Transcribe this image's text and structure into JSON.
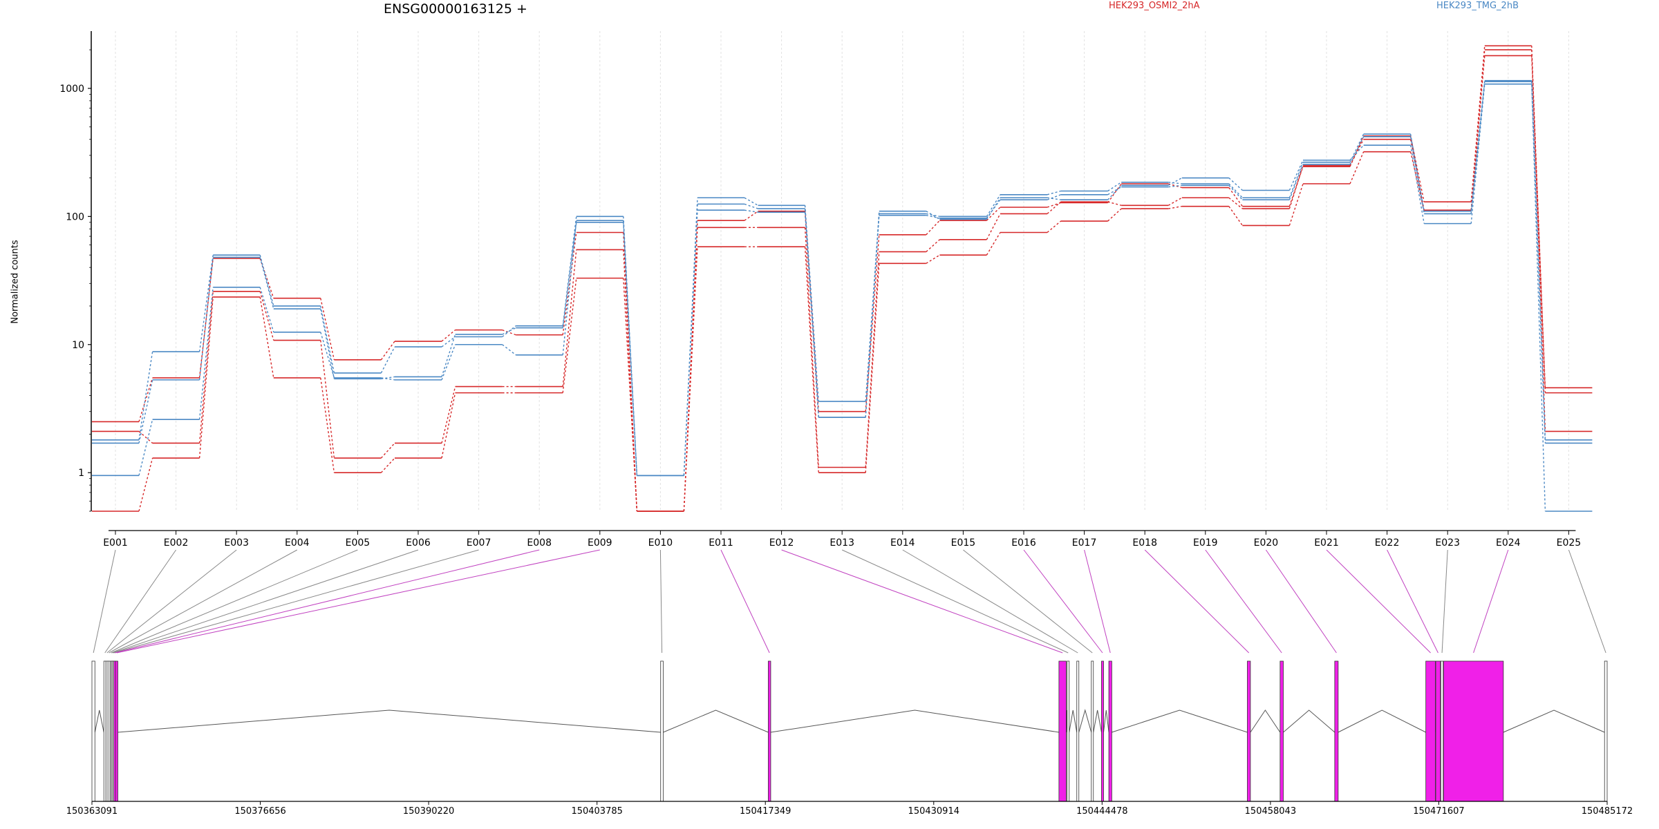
{
  "chart_data": [
    {
      "type": "line",
      "title": "ENSG00000163125 +",
      "ylabel": "Normalized counts",
      "yscale": "log",
      "ylim": [
        0.5,
        2800
      ],
      "yticks": [
        1,
        10,
        100,
        1000
      ],
      "ytick_labels": [
        "1",
        "10",
        "100",
        "1000"
      ],
      "grid": "vertical dashed",
      "legend_placement": "top",
      "categories": [
        "E001",
        "E002",
        "E003",
        "E004",
        "E005",
        "E006",
        "E007",
        "E008",
        "E009",
        "E010",
        "E011",
        "E012",
        "E013",
        "E014",
        "E015",
        "E016",
        "E017",
        "E018",
        "E019",
        "E020",
        "E021",
        "E022",
        "E023",
        "E024",
        "E025"
      ],
      "series": [
        {
          "group": "HEK293_OSMI2_2hA",
          "color": "#d62728",
          "values": [
            0.5,
            1.3,
            23.5,
            5.5,
            1.0,
            1.3,
            4.2,
            4.2,
            33,
            0.5,
            58,
            58,
            1.0,
            43,
            50,
            75,
            92,
            115,
            120,
            85,
            180,
            320,
            110,
            1800,
            4.2
          ]
        },
        {
          "group": "HEK293_OSMI2_2hA",
          "color": "#d62728",
          "values": [
            2.1,
            1.7,
            26,
            10.8,
            1.3,
            1.7,
            4.7,
            4.7,
            55,
            0.5,
            82,
            82,
            1.1,
            53,
            66,
            105,
            130,
            122,
            140,
            115,
            250,
            400,
            112,
            2000,
            4.6
          ]
        },
        {
          "group": "HEK293_OSMI2_2hA",
          "color": "#d62728",
          "values": [
            2.5,
            5.5,
            47,
            23,
            7.6,
            10.6,
            13,
            11.9,
            75,
            0.5,
            93,
            110,
            3.0,
            72,
            93,
            118,
            128,
            180,
            168,
            120,
            245,
            425,
            130,
            2150,
            2.1
          ]
        },
        {
          "group": "HEK293_TMG_2hB",
          "color": "#4a88c4",
          "values": [
            0.95,
            2.6,
            28,
            12.5,
            5.5,
            5.3,
            10,
            8.3,
            93,
            0.95,
            112,
            108,
            2.7,
            110,
            95,
            140,
            135,
            175,
            200,
            160,
            275,
            360,
            88,
            1080,
            0.5
          ]
        },
        {
          "group": "HEK293_TMG_2hB",
          "color": "#4a88c4",
          "values": [
            1.8,
            8.8,
            50,
            20,
            6.0,
            9.6,
            11.5,
            14,
            100,
            0.95,
            140,
            122,
            3.6,
            105,
            100,
            148,
            158,
            185,
            180,
            140,
            265,
            440,
            110,
            1150,
            1.8
          ]
        },
        {
          "group": "HEK293_TMG_2hB",
          "color": "#4a88c4",
          "values": [
            1.7,
            5.3,
            48,
            19,
            5.4,
            5.6,
            12,
            13.5,
            90,
            0.95,
            125,
            115,
            2.7,
            102,
            97,
            135,
            148,
            170,
            175,
            135,
            255,
            420,
            105,
            1130,
            1.7
          ]
        }
      ]
    },
    {
      "type": "gene-model",
      "xlim": [
        150363091,
        150485172
      ],
      "xticks": [
        150363091,
        150376656,
        150390220,
        150403785,
        150417349,
        150430914,
        150444478,
        150458043,
        150471607,
        150485172
      ],
      "xtick_labels": [
        "150363091",
        "150376656",
        "150390220",
        "150403785",
        "150417349",
        "150430914",
        "150444478",
        "150458043",
        "150471607",
        "150485172"
      ],
      "exons": [
        {
          "id": "E001",
          "start": 150363091,
          "end": 150363330,
          "highlight": false
        },
        {
          "id": "E002",
          "start": 150364051,
          "end": 150364160,
          "highlight": false
        },
        {
          "id": "E003",
          "start": 150364221,
          "end": 150364330,
          "highlight": false
        },
        {
          "id": "E004",
          "start": 150364381,
          "end": 150364470,
          "highlight": false
        },
        {
          "id": "E005",
          "start": 150364561,
          "end": 150364630,
          "highlight": false
        },
        {
          "id": "E006",
          "start": 150364661,
          "end": 150364720,
          "highlight": false
        },
        {
          "id": "E007",
          "start": 150364751,
          "end": 150364800,
          "highlight": false
        },
        {
          "id": "E008",
          "start": 150364851,
          "end": 150364950,
          "highlight": true
        },
        {
          "id": "E009",
          "start": 150364991,
          "end": 150365180,
          "highlight": true
        },
        {
          "id": "E010",
          "start": 150408911,
          "end": 150409120,
          "highlight": false
        },
        {
          "id": "E011",
          "start": 150417581,
          "end": 150417780,
          "highlight": true
        },
        {
          "id": "E012",
          "start": 150441001,
          "end": 150441590,
          "highlight": true
        },
        {
          "id": "E013",
          "start": 150441661,
          "end": 150441760,
          "highlight": false
        },
        {
          "id": "E014",
          "start": 150442441,
          "end": 150442560,
          "highlight": false
        },
        {
          "id": "E015",
          "start": 150443611,
          "end": 150443720,
          "highlight": false
        },
        {
          "id": "E016",
          "start": 150444431,
          "end": 150444560,
          "highlight": true
        },
        {
          "id": "E017",
          "start": 150445021,
          "end": 150445260,
          "highlight": true
        },
        {
          "id": "E018",
          "start": 150456181,
          "end": 150456430,
          "highlight": true
        },
        {
          "id": "E019",
          "start": 150458821,
          "end": 150459080,
          "highlight": true
        },
        {
          "id": "E020",
          "start": 150463221,
          "end": 150463500,
          "highlight": true
        },
        {
          "id": "E021",
          "start": 150470561,
          "end": 150471330,
          "highlight": true
        },
        {
          "id": "E022",
          "start": 150471361,
          "end": 150471740,
          "highlight": true
        },
        {
          "id": "E023",
          "start": 150471771,
          "end": 150471960,
          "highlight": false
        },
        {
          "id": "E024",
          "start": 150471991,
          "end": 150476810,
          "highlight": true
        },
        {
          "id": "E025",
          "start": 150484961,
          "end": 150485172,
          "highlight": false
        }
      ]
    }
  ],
  "legend": [
    {
      "label": "HEK293_OSMI2_2hA",
      "color": "#d62728"
    },
    {
      "label": "HEK293_TMG_2hB",
      "color": "#4a88c4"
    }
  ],
  "colors": {
    "highlight_exon": "#f020e8",
    "plain_exon": "#ffffff",
    "connector_plain": "#888888",
    "connector_highlight": "#c040c0"
  }
}
